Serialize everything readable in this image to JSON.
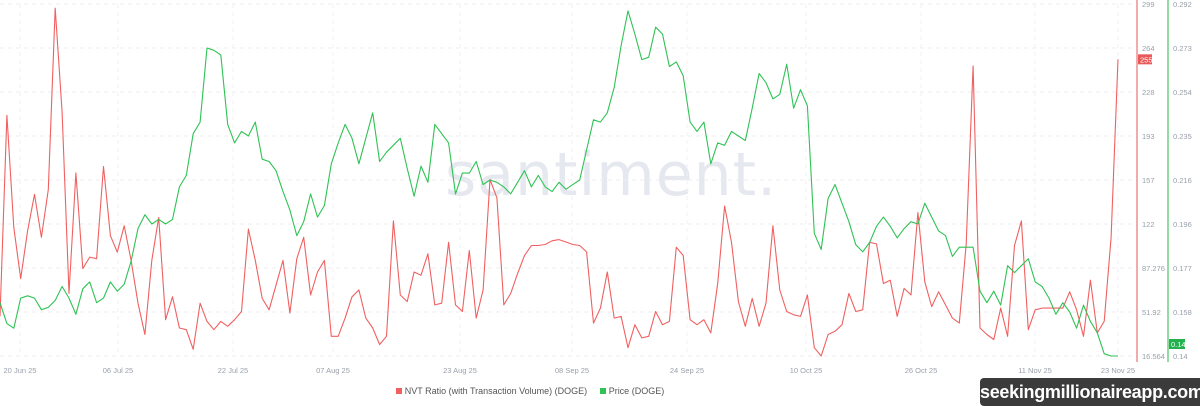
{
  "brand_watermark": "santiment.",
  "site_watermark": "seekingmillionaireapp.com",
  "chart_data": {
    "type": "line",
    "title": "",
    "x_ticks": [
      "20 Jun 25",
      "06 Jul 25",
      "22 Jul 25",
      "07 Aug 25",
      "23 Aug 25",
      "08 Sep 25",
      "24 Sep 25",
      "10 Oct 25",
      "26 Oct 25",
      "11 Nov 25",
      "23 Nov 25"
    ],
    "legend_position": "bottom",
    "grid": true,
    "axes": {
      "left_series": {
        "ticks": [
          "299",
          "264",
          "228",
          "193",
          "157",
          "122",
          "87.276",
          "51.92",
          "16.564"
        ],
        "ylim": [
          16.564,
          299
        ],
        "color": "#e05a5a"
      },
      "right_series": {
        "ticks": [
          "0.292",
          "0.273",
          "0.254",
          "0.235",
          "0.216",
          "0.196",
          "0.177",
          "0.158",
          "0.14"
        ],
        "ylim": [
          0.14,
          0.292
        ],
        "color": "#26b84a"
      }
    },
    "series": [
      {
        "name": "NVT Ratio (with Transaction Volume) (DOGE)",
        "color": "#f06060",
        "last_value_label": "255",
        "values": [
          48.3,
          209.7,
          119.7,
          78.7,
          117.0,
          146.2,
          111.8,
          150.1,
          295.6,
          212.3,
          66.8,
          163.4,
          86.7,
          95.9,
          94.6,
          168.6,
          113.1,
          99.9,
          121.0,
          93.3,
          58.9,
          33.8,
          93.3,
          127.7,
          45.7,
          64.1,
          39.0,
          37.7,
          21.9,
          58.9,
          44.3,
          37.7,
          44.3,
          40.4,
          45.7,
          52.3,
          118.4,
          93.3,
          62.8,
          53.6,
          73.4,
          93.3,
          51.0,
          94.6,
          111.8,
          65.5,
          84.0,
          93.3,
          32.4,
          32.4,
          47.0,
          64.1,
          69.5,
          47.0,
          39.0,
          25.8,
          32.4,
          125.0,
          65.5,
          60.2,
          84.0,
          81.4,
          98.6,
          57.6,
          58.9,
          107.8,
          57.6,
          52.3,
          101.2,
          47.0,
          69.5,
          158.1,
          143.5,
          57.6,
          66.8,
          82.7,
          97.2,
          105.2,
          105.2,
          106,
          109,
          110,
          108,
          106,
          105.2,
          100,
          43,
          55,
          84,
          47,
          48.3,
          23.2,
          41.7,
          31.1,
          32.4,
          52.3,
          41.7,
          44.3,
          103.9,
          97.2,
          45.7,
          41.7,
          45.7,
          35.1,
          74.7,
          136.9,
          107.8,
          60.2,
          40.4,
          62.8,
          40.4,
          58.9,
          121,
          69.5,
          52.3,
          49.6,
          48.3,
          65.5,
          23.2,
          16.6,
          33.8,
          36.4,
          41.7,
          66.8,
          52.3,
          53.6,
          107.8,
          106.5,
          74.7,
          77.4,
          48.3,
          70.8,
          65.5,
          131.6,
          76.1,
          56.2,
          68.1,
          57.6,
          47.0,
          43.0,
          106.5,
          249.3,
          39.0,
          33.8,
          29.8,
          55,
          32.4,
          105.2,
          125,
          37.7,
          53.6,
          55,
          55,
          55,
          55,
          68.1,
          53.6,
          32.4,
          77.4,
          35.1,
          44.3,
          111.8,
          254.6
        ]
      },
      {
        "name": "Price (DOGE)",
        "color": "#2fc255",
        "last_value_label": "0.14",
        "values": [
          0.163,
          0.154,
          0.152,
          0.165,
          0.166,
          0.165,
          0.16,
          0.161,
          0.164,
          0.17,
          0.165,
          0.158,
          0.169,
          0.172,
          0.163,
          0.165,
          0.172,
          0.168,
          0.171,
          0.181,
          0.195,
          0.201,
          0.197,
          0.199,
          0.197,
          0.199,
          0.213,
          0.218,
          0.236,
          0.241,
          0.273,
          0.272,
          0.27,
          0.24,
          0.232,
          0.237,
          0.235,
          0.241,
          0.225,
          0.224,
          0.22,
          0.211,
          0.203,
          0.192,
          0.198,
          0.21,
          0.2,
          0.205,
          0.223,
          0.232,
          0.24,
          0.234,
          0.223,
          0.234,
          0.245,
          0.224,
          0.228,
          0.231,
          0.234,
          0.221,
          0.209,
          0.222,
          0.215,
          0.24,
          0.236,
          0.232,
          0.21,
          0.219,
          0.219,
          0.224,
          0.214,
          0.216,
          0.215,
          0.213,
          0.21,
          0.215,
          0.22,
          0.213,
          0.218,
          0.213,
          0.211,
          0.215,
          0.212,
          0.214,
          0.216,
          0.229,
          0.242,
          0.241,
          0.245,
          0.256,
          0.274,
          0.289,
          0.279,
          0.268,
          0.269,
          0.282,
          0.279,
          0.265,
          0.267,
          0.261,
          0.241,
          0.237,
          0.241,
          0.223,
          0.232,
          0.231,
          0.237,
          0.235,
          0.233,
          0.247,
          0.262,
          0.258,
          0.251,
          0.253,
          0.266,
          0.247,
          0.255,
          0.248,
          0.193,
          0.186,
          0.208,
          0.214,
          0.206,
          0.198,
          0.188,
          0.185,
          0.189,
          0.196,
          0.2,
          0.196,
          0.191,
          0.195,
          0.198,
          0.197,
          0.206,
          0.2,
          0.194,
          0.192,
          0.183,
          0.187,
          0.187,
          0.187,
          0.168,
          0.163,
          0.168,
          0.162,
          0.179,
          0.176,
          0.179,
          0.182,
          0.172,
          0.17,
          0.165,
          0.158,
          0.163,
          0.159,
          0.152,
          0.162,
          0.155,
          0.15,
          0.141,
          0.14,
          0.14
        ]
      }
    ]
  }
}
